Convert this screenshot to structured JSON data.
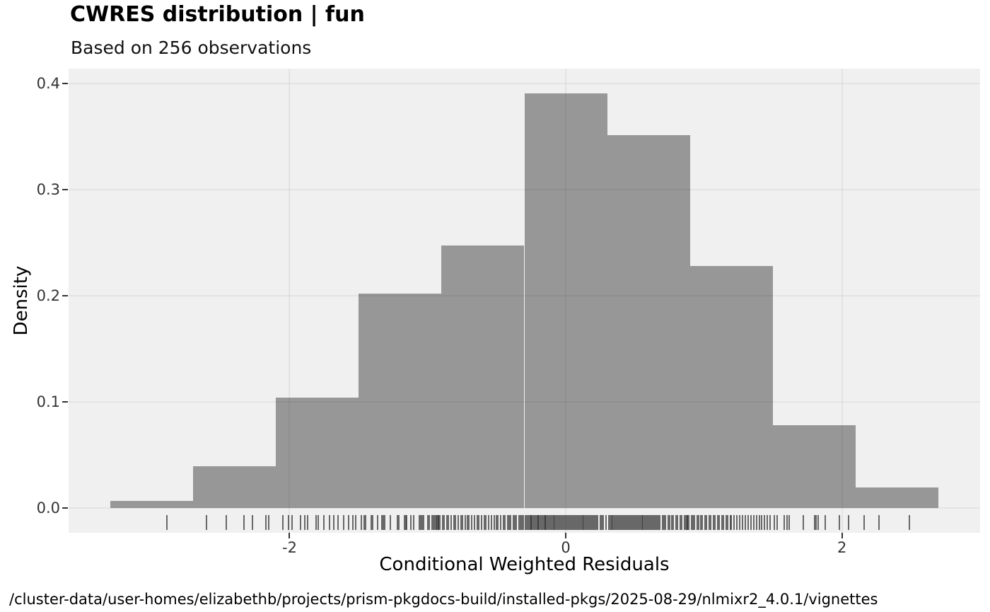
{
  "header": {
    "title": "CWRES distribution | fun",
    "subtitle": "Based on 256 observations"
  },
  "caption": "/cluster-data/user-homes/elizabethb/projects/prism-pkgdocs-build/installed-pkgs/2025-08-29/nlmixr2_4.0.1/vignettes",
  "colors": {
    "page_bg": "#ffffff",
    "panel_bg": "#f0f0f0",
    "bar_fill": "#979797",
    "gridline": "rgba(0,0,0,0.05)",
    "axis_tick": "#333333",
    "tick_label": "#333333",
    "rug": "rgba(45,45,45,0.70)",
    "text": "#000000"
  },
  "chart_data": {
    "type": "bar",
    "subtype": "histogram-with-rug",
    "title": "CWRES distribution | fun",
    "subtitle": "Based on 256 observations",
    "xlabel": "Conditional Weighted Residuals",
    "ylabel": "Density",
    "n_observations": 256,
    "xlim": [
      -3.6,
      3.0
    ],
    "ylim": [
      -0.0233,
      0.414
    ],
    "grid": "on",
    "x_ticks": [
      {
        "value": -2,
        "label": "-2"
      },
      {
        "value": 0,
        "label": "0"
      },
      {
        "value": 2,
        "label": "2"
      }
    ],
    "y_ticks": [
      {
        "value": 0.0,
        "label": "0.0"
      },
      {
        "value": 0.1,
        "label": "0.1"
      },
      {
        "value": 0.2,
        "label": "0.2"
      },
      {
        "value": 0.3,
        "label": "0.3"
      },
      {
        "value": 0.4,
        "label": "0.4"
      }
    ],
    "bin_edges": [
      -3.3,
      -2.7,
      -2.1,
      -1.5,
      -0.9,
      -0.3,
      0.3,
      0.9,
      1.5,
      2.1,
      2.7
    ],
    "densities": [
      0.00651,
      0.03906,
      0.10417,
      0.20182,
      0.2474,
      0.39063,
      0.35156,
      0.22786,
      0.07813,
      0.01953
    ],
    "counts": [
      1,
      6,
      16,
      31,
      38,
      60,
      54,
      35,
      12,
      3
    ],
    "rug": [
      -2.89,
      -2.6,
      -2.46,
      -2.33,
      -2.27,
      -2.17,
      -2.15,
      -2.05,
      -2.01,
      -1.98,
      -1.92,
      -1.89,
      -1.87,
      -1.81,
      -1.79,
      -1.75,
      -1.71,
      -1.68,
      -1.65,
      -1.61,
      -1.57,
      -1.54,
      -1.52,
      -1.48,
      -1.46,
      -1.45,
      -1.41,
      -1.4,
      -1.36,
      -1.33,
      -1.32,
      -1.31,
      -1.27,
      -1.22,
      -1.21,
      -1.17,
      -1.16,
      -1.15,
      -1.12,
      -1.1,
      -1.06,
      -1.05,
      -1.04,
      -1.03,
      -1.0,
      -0.99,
      -0.97,
      -0.96,
      -0.95,
      -0.94,
      -0.93,
      -0.92,
      -0.92,
      -0.91,
      -0.89,
      -0.88,
      -0.86,
      -0.85,
      -0.83,
      -0.81,
      -0.8,
      -0.78,
      -0.76,
      -0.75,
      -0.73,
      -0.71,
      -0.7,
      -0.68,
      -0.66,
      -0.64,
      -0.63,
      -0.61,
      -0.59,
      -0.58,
      -0.56,
      -0.54,
      -0.52,
      -0.5,
      -0.49,
      -0.47,
      -0.45,
      -0.44,
      -0.42,
      -0.41,
      -0.4,
      -0.38,
      -0.37,
      -0.36,
      -0.34,
      -0.33,
      -0.32,
      -0.31,
      -0.29,
      -0.28,
      -0.27,
      -0.26,
      -0.25,
      -0.25,
      -0.24,
      -0.23,
      -0.22,
      -0.21,
      -0.2,
      -0.2,
      -0.19,
      -0.18,
      -0.17,
      -0.16,
      -0.15,
      -0.15,
      -0.14,
      -0.13,
      -0.12,
      -0.11,
      -0.1,
      -0.09,
      -0.08,
      -0.07,
      -0.06,
      -0.05,
      -0.04,
      -0.03,
      -0.02,
      -0.01,
      0.0,
      0.01,
      0.02,
      0.03,
      0.04,
      0.05,
      0.06,
      0.07,
      0.08,
      0.09,
      0.1,
      0.11,
      0.12,
      0.13,
      0.14,
      0.15,
      0.16,
      0.17,
      0.18,
      0.19,
      0.2,
      0.21,
      0.22,
      0.23,
      0.25,
      0.26,
      0.27,
      0.29,
      0.31,
      0.32,
      0.33,
      0.34,
      0.35,
      0.36,
      0.37,
      0.38,
      0.39,
      0.4,
      0.41,
      0.42,
      0.43,
      0.44,
      0.45,
      0.46,
      0.47,
      0.48,
      0.49,
      0.5,
      0.51,
      0.52,
      0.53,
      0.54,
      0.55,
      0.56,
      0.57,
      0.58,
      0.59,
      0.6,
      0.61,
      0.62,
      0.63,
      0.64,
      0.65,
      0.66,
      0.67,
      0.68,
      0.7,
      0.71,
      0.72,
      0.74,
      0.75,
      0.77,
      0.78,
      0.8,
      0.81,
      0.83,
      0.84,
      0.86,
      0.87,
      0.88,
      0.88,
      0.89,
      0.91,
      0.92,
      0.93,
      0.95,
      0.96,
      0.98,
      0.99,
      1.01,
      1.02,
      1.04,
      1.05,
      1.07,
      1.08,
      1.1,
      1.11,
      1.13,
      1.14,
      1.16,
      1.17,
      1.19,
      1.2,
      1.22,
      1.24,
      1.26,
      1.28,
      1.3,
      1.32,
      1.34,
      1.36,
      1.38,
      1.4,
      1.42,
      1.44,
      1.46,
      1.48,
      1.51,
      1.53,
      1.58,
      1.6,
      1.62,
      1.72,
      1.8,
      1.81,
      1.83,
      1.88,
      1.98,
      2.05,
      2.16,
      2.27,
      2.49
    ]
  }
}
